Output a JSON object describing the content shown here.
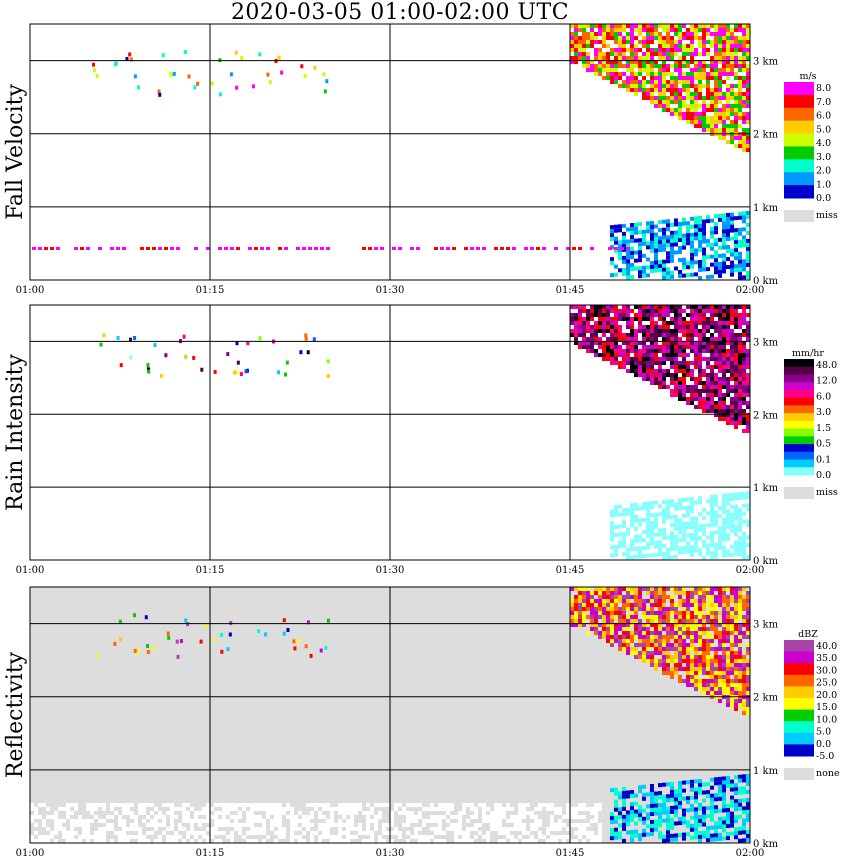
{
  "title": "2020-03-05   01:00-02:00 UTC",
  "time_ticks": [
    "01:00",
    "01:15",
    "01:30",
    "01:45",
    "02:00"
  ],
  "height_ticks": [
    "0 km",
    "1 km",
    "2 km",
    "3 km"
  ],
  "chart_data": [
    {
      "type": "heatmap",
      "title": "Fall Velocity",
      "ylabel": "Fall Velocity",
      "xlim": [
        "01:00",
        "02:00"
      ],
      "ylim_km": [
        0,
        3.5
      ],
      "grid": true,
      "legend": {
        "unit": "m/s",
        "labels": [
          "8.0",
          "7.0",
          "6.0",
          "5.0",
          "4.0",
          "3.0",
          "2.0",
          "1.0",
          "0.0"
        ],
        "colors": [
          "#ff00ff",
          "#ff0000",
          "#ff6600",
          "#ffcc00",
          "#ccff00",
          "#00cc00",
          "#00ffcc",
          "#0099ff",
          "#0000cc"
        ],
        "miss_label": "miss",
        "miss_color": "#dddddd"
      }
    },
    {
      "type": "heatmap",
      "title": "Rain Intensity",
      "ylabel": "Rain Intensity",
      "xlim": [
        "01:00",
        "02:00"
      ],
      "ylim_km": [
        0,
        3.5
      ],
      "grid": true,
      "legend": {
        "unit": "mm/hr",
        "labels": [
          "48.0",
          "12.0",
          "6.0",
          "3.0",
          "1.5",
          "0.5",
          "0.1",
          "0.0"
        ],
        "colors": [
          "#000000",
          "#550044",
          "#880088",
          "#cc00cc",
          "#ff0088",
          "#ff0000",
          "#ff6600",
          "#ffcc00",
          "#ffff00",
          "#88ff00",
          "#00cc00",
          "#0000cc",
          "#0066ff",
          "#00ccff",
          "#88ffff"
        ],
        "miss_label": "miss",
        "miss_color": "#dddddd"
      }
    },
    {
      "type": "heatmap",
      "title": "Reflectivity",
      "ylabel": "Reflectivity",
      "xlim": [
        "01:00",
        "02:00"
      ],
      "ylim_km": [
        0,
        3.5
      ],
      "grid": true,
      "legend": {
        "unit": "dBZ",
        "labels": [
          "40.0",
          "35.0",
          "30.0",
          "25.0",
          "20.0",
          "15.0",
          "10.0",
          "5.0",
          "0.0",
          "-5.0"
        ],
        "colors": [
          "#aa44aa",
          "#cc00cc",
          "#ff0000",
          "#ff6600",
          "#ffcc00",
          "#ffff00",
          "#00cc00",
          "#00ffcc",
          "#00ccff",
          "#0000cc"
        ],
        "miss_label": "none",
        "miss_color": "#dddddd"
      }
    }
  ]
}
